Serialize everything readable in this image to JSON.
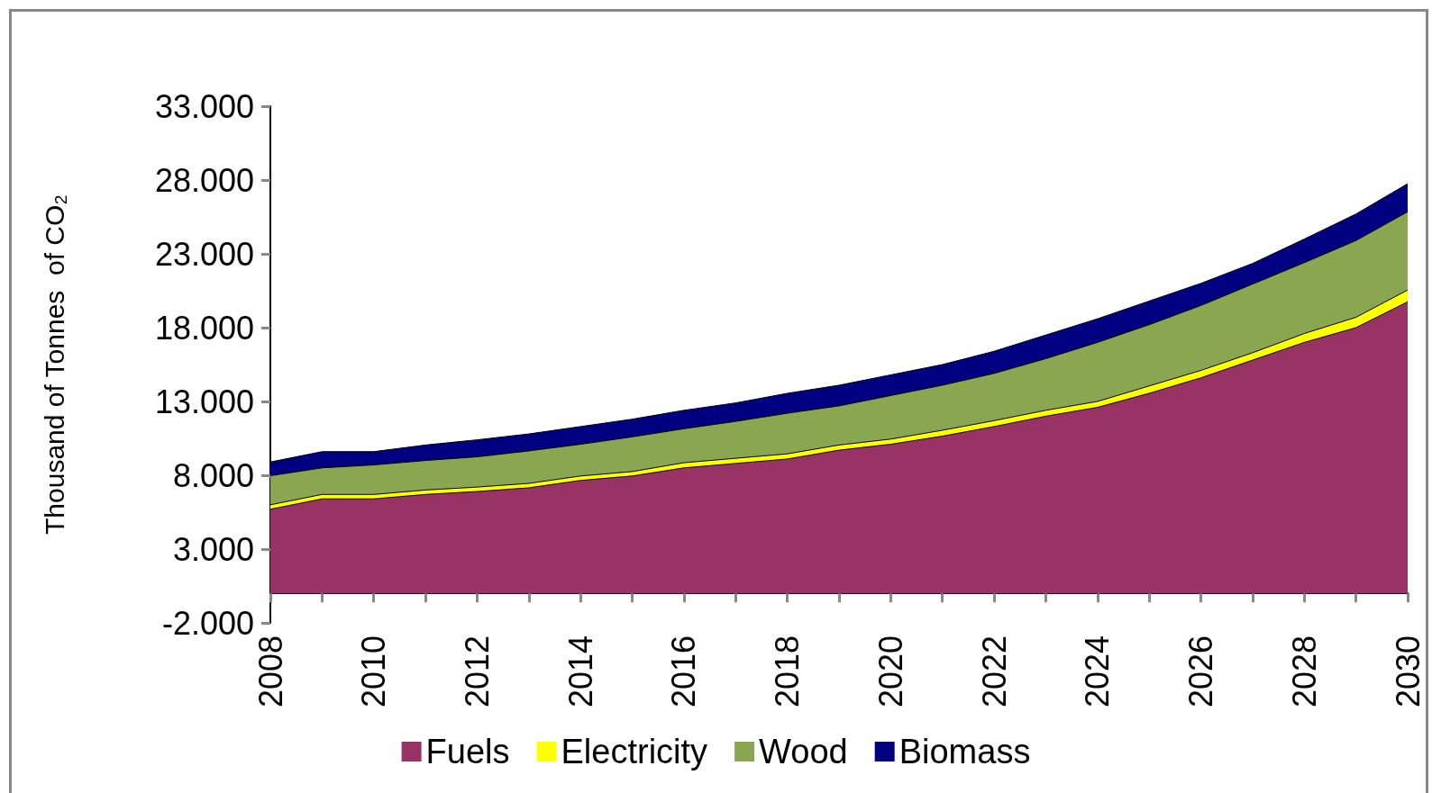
{
  "chart_data": {
    "type": "area",
    "stacked": true,
    "ylabel": "Thousand of Tonnes  of CO₂",
    "legend": "bottom",
    "grid": false,
    "categories": [
      "2008",
      null,
      "2010",
      null,
      "2012",
      null,
      "2014",
      null,
      "2016",
      null,
      "2018",
      null,
      "2020",
      null,
      "2022",
      null,
      "2024",
      null,
      "2026",
      null,
      "2028",
      null,
      "2030"
    ],
    "series": [
      {
        "name": "Fuels",
        "color": "#993366",
        "values": [
          5700,
          6400,
          6400,
          6700,
          6900,
          7150,
          7650,
          7950,
          8500,
          8800,
          9100,
          9700,
          10100,
          10650,
          11300,
          12000,
          12600,
          13550,
          14600,
          15800,
          17000,
          18000,
          19750
        ]
      },
      {
        "name": "Electricity",
        "color": "#ffff00",
        "values": [
          300,
          300,
          300,
          300,
          300,
          300,
          300,
          300,
          350,
          350,
          350,
          350,
          350,
          400,
          400,
          400,
          400,
          500,
          500,
          500,
          600,
          700,
          800
        ]
      },
      {
        "name": "Wood",
        "color": "#8aa650",
        "values": [
          1970,
          1800,
          2000,
          2000,
          2050,
          2200,
          2150,
          2350,
          2300,
          2500,
          2750,
          2650,
          2950,
          3050,
          3200,
          3500,
          4000,
          4150,
          4400,
          4650,
          4800,
          5200,
          5300
        ]
      },
      {
        "name": "Biomass",
        "color": "#000080",
        "values": [
          930,
          1100,
          900,
          1050,
          1150,
          1150,
          1200,
          1200,
          1250,
          1250,
          1350,
          1400,
          1400,
          1400,
          1500,
          1600,
          1600,
          1600,
          1500,
          1400,
          1600,
          1800,
          1900
        ]
      }
    ],
    "ylim": [
      -2000,
      33000
    ],
    "yticks": [
      {
        "value": -2000,
        "label": "-2.000"
      },
      {
        "value": 3000,
        "label": "3.000"
      },
      {
        "value": 8000,
        "label": "8.000"
      },
      {
        "value": 13000,
        "label": "13.000"
      },
      {
        "value": 18000,
        "label": "18.000"
      },
      {
        "value": 23000,
        "label": "23.000"
      },
      {
        "value": 28000,
        "label": "28.000"
      },
      {
        "value": 33000,
        "label": "33.000"
      }
    ]
  }
}
